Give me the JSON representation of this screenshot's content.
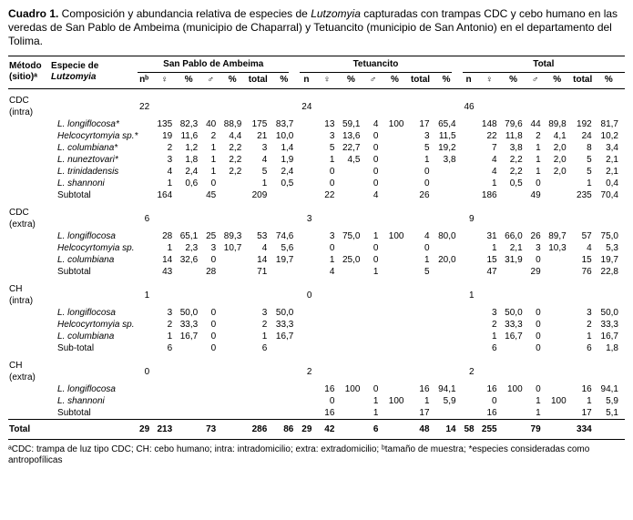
{
  "colors": {
    "background": "#ffffff",
    "text": "#000000",
    "rule": "#000000"
  },
  "caption": {
    "label": "Cuadro 1.",
    "text_before_genus": " Composición y abundancia relativa de especies de ",
    "genus": "Lutzomyia",
    "text_after_genus": " capturadas con trampas CDC y cebo humano en las veredas de San Pablo de Ambeima (municipio de Chaparral) y Tetuancito (municipio de San Antonio) en el departamento del Tolima."
  },
  "header": {
    "method": [
      "Método",
      "(sitio)ᵃ"
    ],
    "species": [
      "Especie de",
      "Lutzomyia"
    ],
    "groups": [
      {
        "label": "San Pablo de Ambeima",
        "subcols": [
          "nᵇ",
          "♀",
          "%",
          "♂",
          "%",
          "total",
          "%"
        ]
      },
      {
        "label": "Tetuancito",
        "subcols": [
          "n",
          "♀",
          "%",
          "♂",
          "%",
          "total",
          "%"
        ]
      },
      {
        "label": "Total",
        "subcols": [
          "n",
          "♀",
          "%",
          "♂",
          "%",
          "total",
          "%"
        ]
      }
    ]
  },
  "sections": [
    {
      "method": [
        "CDC",
        "(intra)"
      ],
      "n_cells": [
        "22",
        "",
        "",
        "",
        "",
        "",
        "",
        "24",
        "",
        "",
        "",
        "",
        "",
        "",
        "46",
        "",
        "",
        "",
        "",
        "",
        ""
      ],
      "rows": [
        {
          "name": "L. longiflocosa*",
          "italic": true,
          "cells": [
            "",
            "135",
            "82,3",
            "40",
            "88,9",
            "175",
            "83,7",
            "",
            "13",
            "59,1",
            "4",
            "100",
            "17",
            "65,4",
            "",
            "148",
            "79,6",
            "44",
            "89,8",
            "192",
            "81,7"
          ]
        },
        {
          "name": "Helcocyrtomyia sp.*",
          "italic": true,
          "cells": [
            "",
            "19",
            "11,6",
            "2",
            "4,4",
            "21",
            "10,0",
            "",
            "3",
            "13,6",
            "0",
            "",
            "3",
            "11,5",
            "",
            "22",
            "11,8",
            "2",
            "4,1",
            "24",
            "10,2"
          ]
        },
        {
          "name": "L. columbiana*",
          "italic": true,
          "cells": [
            "",
            "2",
            "1,2",
            "1",
            "2,2",
            "3",
            "1,4",
            "",
            "5",
            "22,7",
            "0",
            "",
            "5",
            "19,2",
            "",
            "7",
            "3,8",
            "1",
            "2,0",
            "8",
            "3,4"
          ]
        },
        {
          "name": "L. nuneztovari*",
          "italic": true,
          "cells": [
            "",
            "3",
            "1,8",
            "1",
            "2,2",
            "4",
            "1,9",
            "",
            "1",
            "4,5",
            "0",
            "",
            "1",
            "3,8",
            "",
            "4",
            "2,2",
            "1",
            "2,0",
            "5",
            "2,1"
          ]
        },
        {
          "name": "L. trinidadensis",
          "italic": true,
          "cells": [
            "",
            "4",
            "2,4",
            "1",
            "2,2",
            "5",
            "2,4",
            "",
            "0",
            "",
            "0",
            "",
            "0",
            "",
            "",
            "4",
            "2,2",
            "1",
            "2,0",
            "5",
            "2,1"
          ]
        },
        {
          "name": "L. shannoni",
          "italic": true,
          "cells": [
            "",
            "1",
            "0,6",
            "0",
            "",
            "1",
            "0,5",
            "",
            "0",
            "",
            "0",
            "",
            "0",
            "",
            "",
            "1",
            "0,5",
            "0",
            "",
            "1",
            "0,4"
          ]
        },
        {
          "name": "Subtotal",
          "italic": false,
          "cells": [
            "",
            "164",
            "",
            "45",
            "",
            "209",
            "",
            "",
            "22",
            "",
            "4",
            "",
            "26",
            "",
            "",
            "186",
            "",
            "49",
            "",
            "235",
            "70,4"
          ]
        }
      ]
    },
    {
      "method": [
        "CDC",
        "(extra)"
      ],
      "n_cells": [
        "6",
        "",
        "",
        "",
        "",
        "",
        "",
        "3",
        "",
        "",
        "",
        "",
        "",
        "",
        "9",
        "",
        "",
        "",
        "",
        "",
        ""
      ],
      "rows": [
        {
          "name": "L. longiflocosa",
          "italic": true,
          "cells": [
            "",
            "28",
            "65,1",
            "25",
            "89,3",
            "53",
            "74,6",
            "",
            "3",
            "75,0",
            "1",
            "100",
            "4",
            "80,0",
            "",
            "31",
            "66,0",
            "26",
            "89,7",
            "57",
            "75,0"
          ]
        },
        {
          "name": "Helcocyrtomyia sp.",
          "italic": true,
          "cells": [
            "",
            "1",
            "2,3",
            "3",
            "10,7",
            "4",
            "5,6",
            "",
            "0",
            "",
            "0",
            "",
            "0",
            "",
            "",
            "1",
            "2,1",
            "3",
            "10,3",
            "4",
            "5,3"
          ]
        },
        {
          "name": "L. columbiana",
          "italic": true,
          "cells": [
            "",
            "14",
            "32,6",
            "0",
            "",
            "14",
            "19,7",
            "",
            "1",
            "25,0",
            "0",
            "",
            "1",
            "20,0",
            "",
            "15",
            "31,9",
            "0",
            "",
            "15",
            "19,7"
          ]
        },
        {
          "name": "Subtotal",
          "italic": false,
          "cells": [
            "",
            "43",
            "",
            "28",
            "",
            "71",
            "",
            "",
            "4",
            "",
            "1",
            "",
            "5",
            "",
            "",
            "47",
            "",
            "29",
            "",
            "76",
            "22,8"
          ]
        }
      ]
    },
    {
      "method": [
        "CH",
        "(intra)"
      ],
      "n_cells": [
        "1",
        "",
        "",
        "",
        "",
        "",
        "",
        "0",
        "",
        "",
        "",
        "",
        "",
        "",
        "1",
        "",
        "",
        "",
        "",
        "",
        ""
      ],
      "rows": [
        {
          "name": "L. longiflocosa",
          "italic": true,
          "cells": [
            "",
            "3",
            "50,0",
            "0",
            "",
            "3",
            "50,0",
            "",
            "",
            "",
            "",
            "",
            "",
            "",
            "",
            "3",
            "50,0",
            "0",
            "",
            "3",
            "50,0"
          ]
        },
        {
          "name": "Helcocyrtomyia sp.",
          "italic": true,
          "cells": [
            "",
            "2",
            "33,3",
            "0",
            "",
            "2",
            "33,3",
            "",
            "",
            "",
            "",
            "",
            "",
            "",
            "",
            "2",
            "33,3",
            "0",
            "",
            "2",
            "33,3"
          ]
        },
        {
          "name": "L. columbiana",
          "italic": true,
          "cells": [
            "",
            "1",
            "16,7",
            "0",
            "",
            "1",
            "16,7",
            "",
            "",
            "",
            "",
            "",
            "",
            "",
            "",
            "1",
            "16,7",
            "0",
            "",
            "1",
            "16,7"
          ]
        },
        {
          "name": "Sub-total",
          "italic": false,
          "cells": [
            "",
            "6",
            "",
            "0",
            "",
            "6",
            "",
            "",
            "",
            "",
            "",
            "",
            "",
            "",
            "",
            "6",
            "",
            "0",
            "",
            "6",
            "1,8"
          ]
        }
      ]
    },
    {
      "method": [
        "CH",
        "(extra)"
      ],
      "n_cells": [
        "0",
        "",
        "",
        "",
        "",
        "",
        "",
        "2",
        "",
        "",
        "",
        "",
        "",
        "",
        "2",
        "",
        "",
        "",
        "",
        "",
        ""
      ],
      "rows": [
        {
          "name": "L. longiflocosa",
          "italic": true,
          "cells": [
            "",
            "",
            "",
            "",
            "",
            "",
            "",
            "",
            "16",
            "100",
            "0",
            "",
            "16",
            "94,1",
            "",
            "16",
            "100",
            "0",
            "",
            "16",
            "94,1"
          ]
        },
        {
          "name": "L. shannoni",
          "italic": true,
          "cells": [
            "",
            "",
            "",
            "",
            "",
            "",
            "",
            "",
            "0",
            "",
            "1",
            "100",
            "1",
            "5,9",
            "",
            "0",
            "",
            "1",
            "100",
            "1",
            "5,9"
          ]
        },
        {
          "name": "Subtotal",
          "italic": false,
          "cells": [
            "",
            "",
            "",
            "",
            "",
            "",
            "",
            "",
            "16",
            "",
            "1",
            "",
            "17",
            "",
            "",
            "16",
            "",
            "1",
            "",
            "17",
            "5,1"
          ]
        }
      ]
    }
  ],
  "grand_total": {
    "name": "Total",
    "cells": [
      "29",
      "213",
      "",
      "73",
      "",
      "286",
      "86",
      "29",
      "42",
      "",
      "6",
      "",
      "48",
      "14",
      "58",
      "255",
      "",
      "79",
      "",
      "334",
      ""
    ]
  },
  "footnote": "ᵃCDC: trampa de luz tipo CDC; CH: cebo humano; intra: intradomicilio; extra: extradomicilio; ᵇtamaño de muestra; *especies consideradas como antropofílicas"
}
